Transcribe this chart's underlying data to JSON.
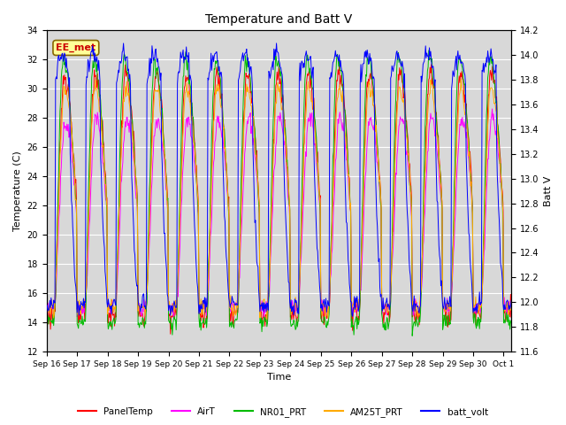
{
  "title": "Temperature and Batt V",
  "xlabel": "Time",
  "ylabel_left": "Temperature (C)",
  "ylabel_right": "Batt V",
  "annotation_text": "EE_met",
  "annotation_color": "#cc0000",
  "annotation_bg": "#ffff99",
  "annotation_edge": "#886600",
  "ylim_left": [
    12,
    34
  ],
  "ylim_right": [
    11.6,
    14.2
  ],
  "yticks_left": [
    12,
    14,
    16,
    18,
    20,
    22,
    24,
    26,
    28,
    30,
    32,
    34
  ],
  "yticks_right": [
    11.6,
    11.8,
    12.0,
    12.2,
    12.4,
    12.6,
    12.8,
    13.0,
    13.2,
    13.4,
    13.6,
    13.8,
    14.0,
    14.2
  ],
  "bg_color": "#d8d8d8",
  "fig_color": "#ffffff",
  "legend_entries": [
    "PanelTemp",
    "AirT",
    "NR01_PRT",
    "AM25T_PRT",
    "batt_volt"
  ],
  "legend_colors": [
    "#ff0000",
    "#ff00ff",
    "#00bb00",
    "#ffaa00",
    "#0000ff"
  ],
  "grid_color": "#ffffff",
  "title_fontsize": 10
}
